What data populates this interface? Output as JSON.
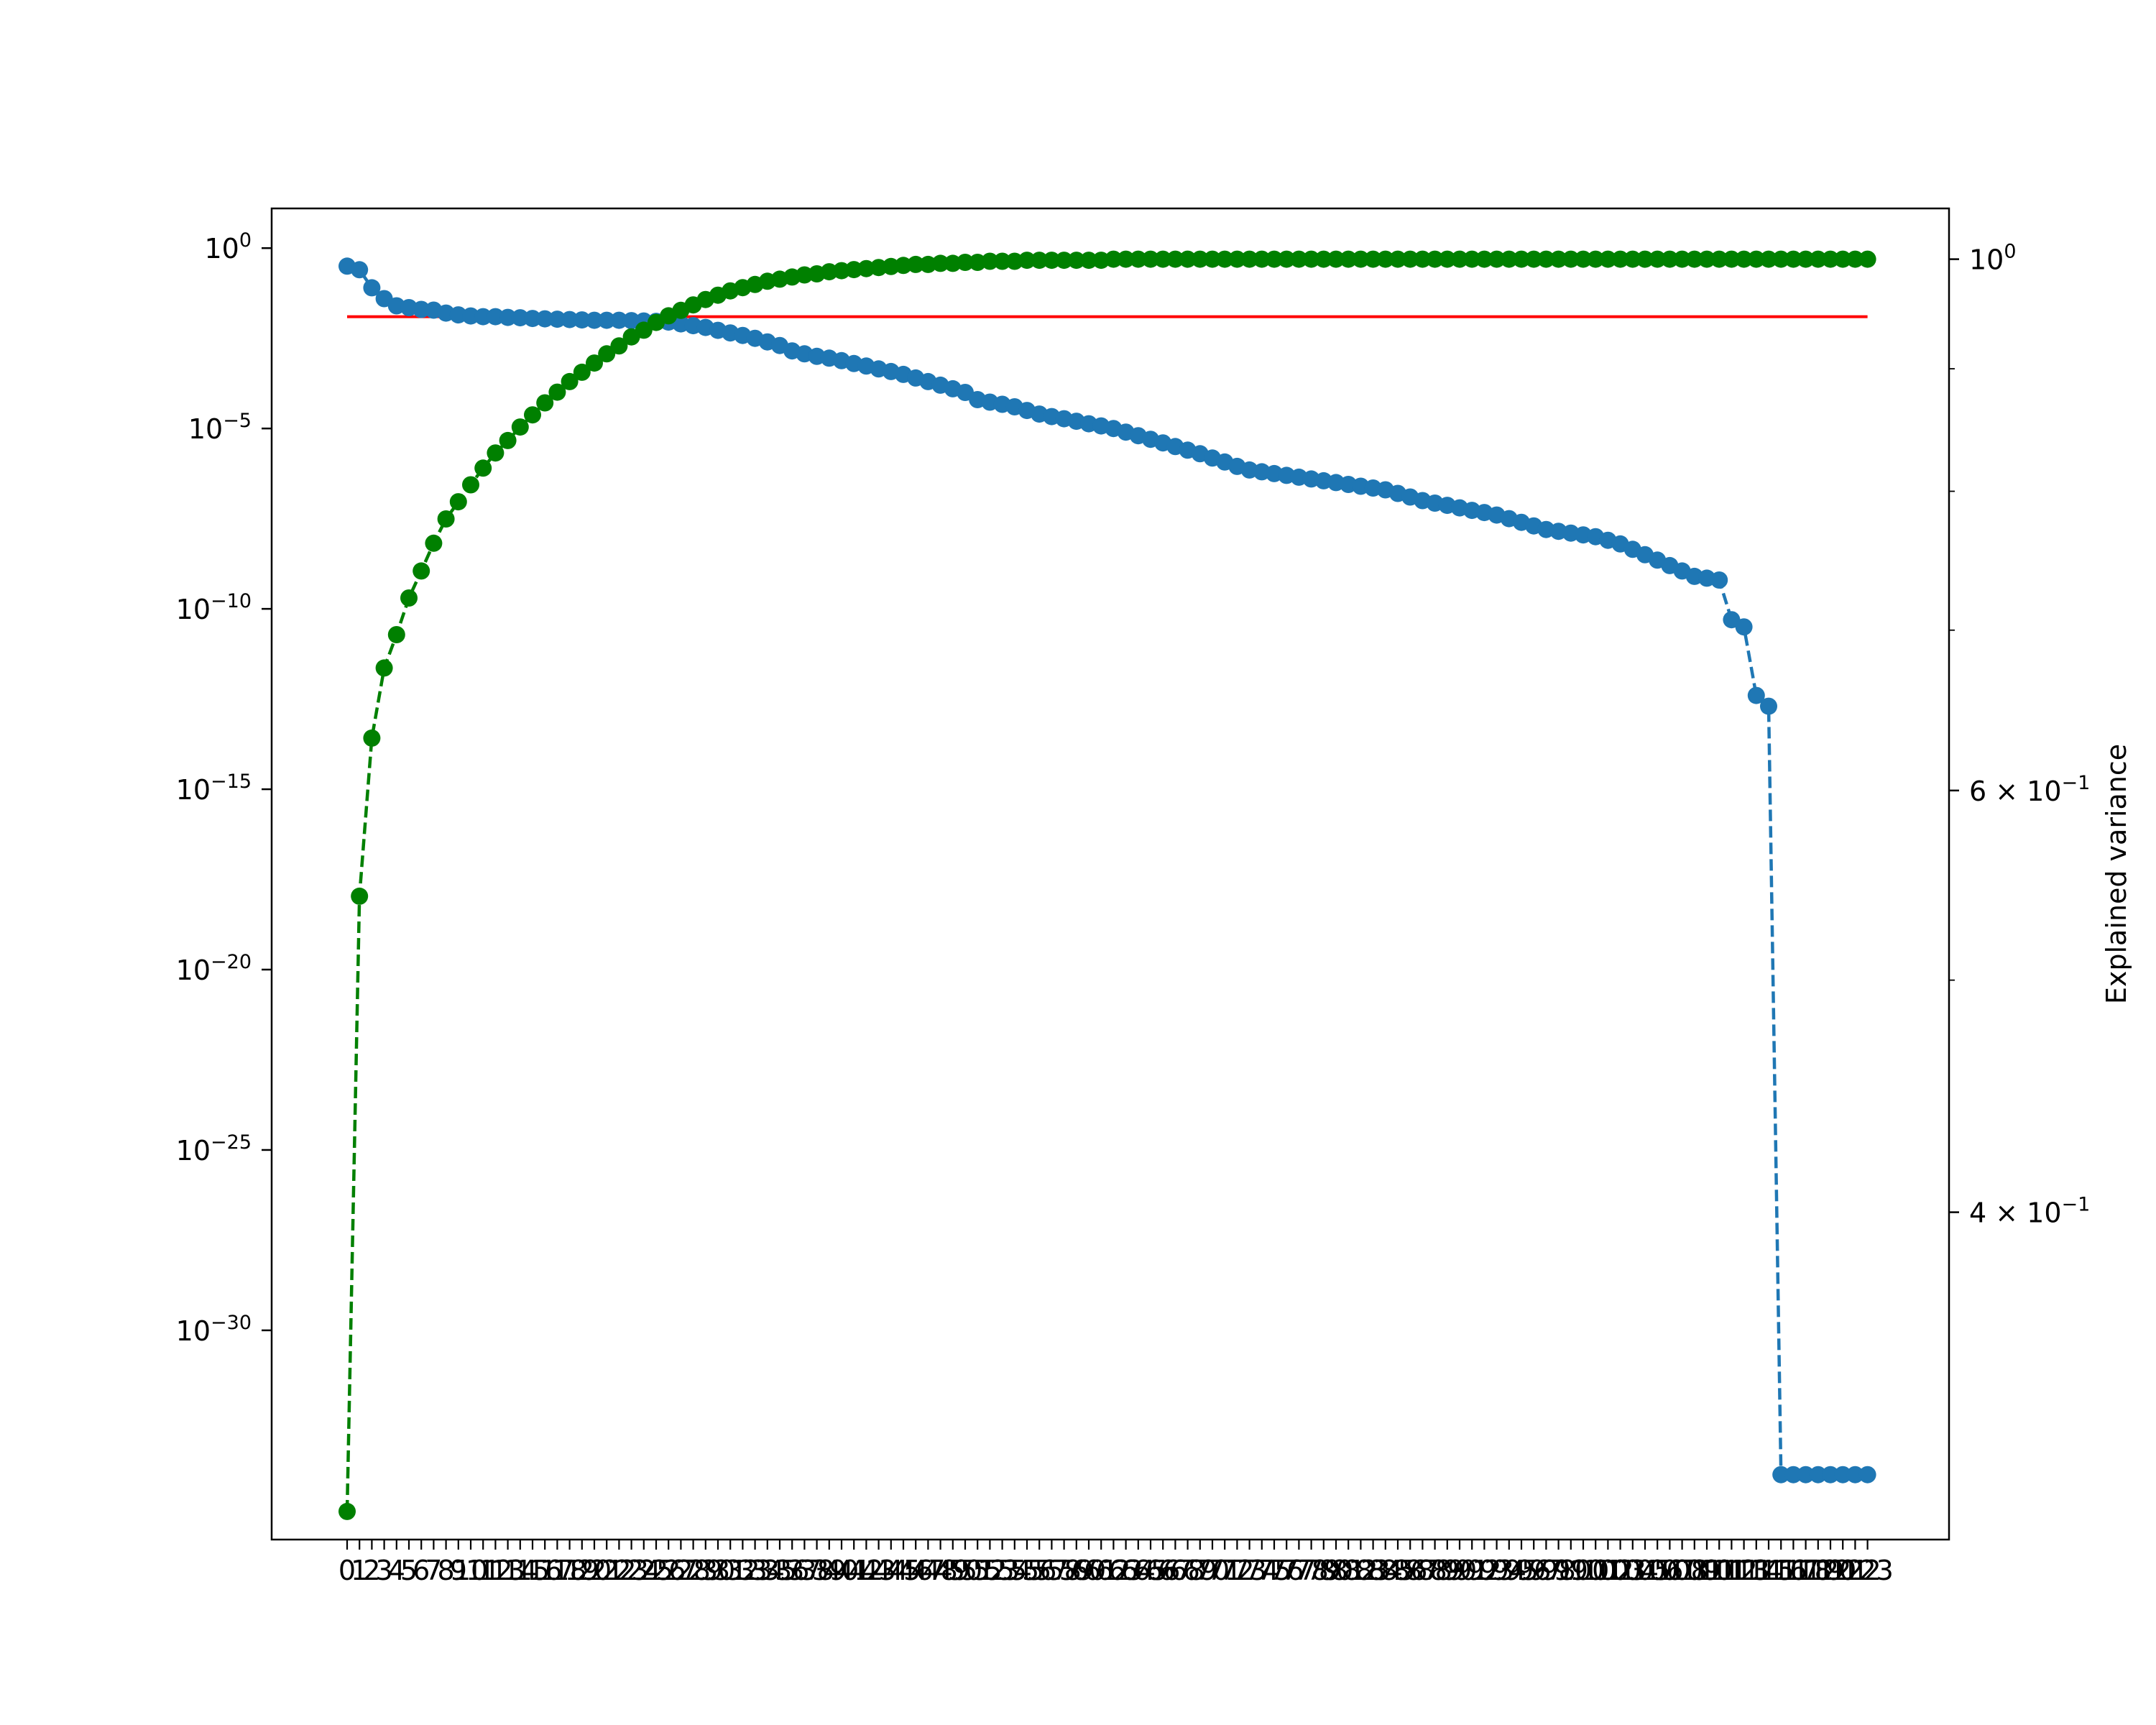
{
  "chart_data": {
    "type": "line",
    "title": "",
    "xlabel": "",
    "ylabel_left": "",
    "ylabel_right": "Explained variance",
    "x": {
      "start": 0,
      "end": 123,
      "step": 1
    },
    "left_axis": {
      "scale": "log",
      "ylim_exponent": [
        -35.8,
        1.1
      ],
      "ticks": [
        {
          "exp": 0,
          "label": "10",
          "sup": "0"
        },
        {
          "exp": -5,
          "label": "10",
          "sup": "−5"
        },
        {
          "exp": -10,
          "label": "10",
          "sup": "−10"
        },
        {
          "exp": -15,
          "label": "10",
          "sup": "−15"
        },
        {
          "exp": -20,
          "label": "10",
          "sup": "−20"
        },
        {
          "exp": -25,
          "label": "10",
          "sup": "−25"
        },
        {
          "exp": -30,
          "label": "10",
          "sup": "−30"
        }
      ]
    },
    "right_axis": {
      "scale": "log",
      "ylim": [
        0.292,
        1.05
      ],
      "ticks": [
        {
          "value": 1.0,
          "label": "10",
          "sup": "0"
        },
        {
          "value": 0.6,
          "label": "6 × 10",
          "sup": "−1"
        },
        {
          "value": 0.4,
          "label": "4 × 10",
          "sup": "−1"
        }
      ],
      "minor_ticks": [
        0.5,
        0.7,
        0.8,
        0.9
      ]
    },
    "threshold": {
      "value_exponent": -1.9,
      "color": "#ff0000",
      "x_range": [
        0,
        123
      ]
    },
    "series": [
      {
        "axis": "left",
        "color": "#1f77b4",
        "line_style": "dashed",
        "marker": "circle",
        "values_log10": [
          -0.5,
          -0.6,
          -1.1,
          -1.4,
          -1.6,
          -1.65,
          -1.7,
          -1.72,
          -1.8,
          -1.85,
          -1.88,
          -1.9,
          -1.9,
          -1.92,
          -1.93,
          -1.95,
          -1.96,
          -1.97,
          -1.98,
          -1.99,
          -2.0,
          -2.0,
          -2.0,
          -2.01,
          -2.02,
          -2.03,
          -2.05,
          -2.1,
          -2.15,
          -2.2,
          -2.28,
          -2.35,
          -2.42,
          -2.5,
          -2.6,
          -2.7,
          -2.85,
          -2.93,
          -3.0,
          -3.05,
          -3.12,
          -3.2,
          -3.27,
          -3.35,
          -3.42,
          -3.5,
          -3.6,
          -3.7,
          -3.8,
          -3.9,
          -4.0,
          -4.2,
          -4.27,
          -4.33,
          -4.4,
          -4.5,
          -4.6,
          -4.67,
          -4.73,
          -4.8,
          -4.87,
          -4.93,
          -5.0,
          -5.1,
          -5.2,
          -5.3,
          -5.4,
          -5.5,
          -5.6,
          -5.7,
          -5.82,
          -5.93,
          -6.05,
          -6.15,
          -6.2,
          -6.25,
          -6.3,
          -6.35,
          -6.4,
          -6.45,
          -6.5,
          -6.55,
          -6.6,
          -6.65,
          -6.7,
          -6.8,
          -6.9,
          -7.0,
          -7.07,
          -7.13,
          -7.2,
          -7.27,
          -7.33,
          -7.4,
          -7.5,
          -7.6,
          -7.7,
          -7.8,
          -7.85,
          -7.9,
          -7.95,
          -8.0,
          -8.1,
          -8.2,
          -8.35,
          -8.5,
          -8.65,
          -8.8,
          -8.95,
          -9.1,
          -9.15,
          -9.2,
          -10.3,
          -10.5,
          -12.4,
          -12.7,
          -34.0,
          -34.0,
          -34.0,
          -34.0,
          -34.0,
          -34.0,
          -34.0,
          -34.0
        ]
      },
      {
        "axis": "right",
        "color": "#008000",
        "line_style": "dashed",
        "marker": "circle",
        "values": [
          0.3,
          0.542,
          0.631,
          0.675,
          0.697,
          0.722,
          0.741,
          0.761,
          0.779,
          0.792,
          0.805,
          0.818,
          0.83,
          0.84,
          0.851,
          0.861,
          0.871,
          0.88,
          0.889,
          0.897,
          0.905,
          0.913,
          0.92,
          0.928,
          0.934,
          0.941,
          0.947,
          0.952,
          0.957,
          0.962,
          0.966,
          0.97,
          0.973,
          0.976,
          0.979,
          0.981,
          0.983,
          0.985,
          0.986,
          0.988,
          0.989,
          0.99,
          0.991,
          0.992,
          0.993,
          0.994,
          0.995,
          0.995,
          0.996,
          0.996,
          0.997,
          0.997,
          0.998,
          0.998,
          0.998,
          0.999,
          0.999,
          0.999,
          0.999,
          0.999,
          0.999,
          0.999,
          1.0,
          1.0,
          1.0,
          1.0,
          1.0,
          1.0,
          1.0,
          1.0,
          1.0,
          1.0,
          1.0,
          1.0,
          1.0,
          1.0,
          1.0,
          1.0,
          1.0,
          1.0,
          1.0,
          1.0,
          1.0,
          1.0,
          1.0,
          1.0,
          1.0,
          1.0,
          1.0,
          1.0,
          1.0,
          1.0,
          1.0,
          1.0,
          1.0,
          1.0,
          1.0,
          1.0,
          1.0,
          1.0,
          1.0,
          1.0,
          1.0,
          1.0,
          1.0,
          1.0,
          1.0,
          1.0,
          1.0,
          1.0,
          1.0,
          1.0,
          1.0,
          1.0,
          1.0,
          1.0,
          1.0,
          1.0,
          1.0,
          1.0,
          1.0,
          1.0,
          1.0,
          1.0
        ]
      }
    ],
    "grid": false,
    "legend": "none"
  }
}
